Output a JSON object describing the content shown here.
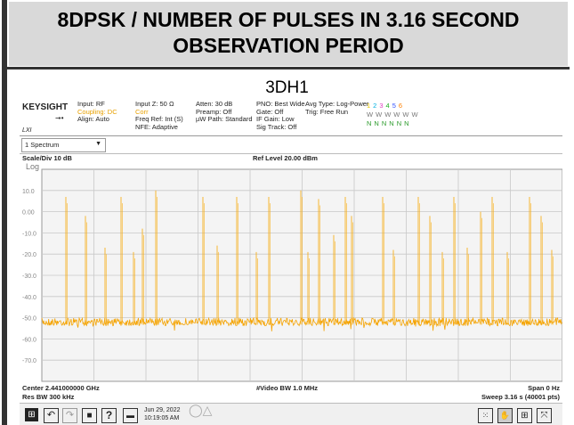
{
  "header": {
    "title": "8DPSK / NUMBER OF PULSES IN 3.16 SECOND OBSERVATION PERIOD",
    "subtitle": "3DH1"
  },
  "screen": {
    "brand": "KEYSIGHT",
    "lxi": "LXI",
    "settings": [
      [
        "Input: RF",
        "Coupling: DC",
        "Align: Auto"
      ],
      [
        "Input Z: 50 Ω",
        "Corr",
        "Freq Ref: Int (S)",
        "NFE: Adaptive"
      ],
      [
        "Atten: 30 dB",
        "Preamp: Off",
        "µW Path: Standard"
      ],
      [
        "PNO: Best Wide",
        "Gate: Off",
        "IF Gain: Low",
        "Sig Track: Off"
      ],
      [
        "Avg Type: Log-Power",
        "Trig: Free Run"
      ]
    ],
    "traces": {
      "numbers": [
        "1",
        "2",
        "3",
        "4",
        "5",
        "6"
      ],
      "types": [
        "W",
        "W",
        "W",
        "W",
        "W",
        "W"
      ],
      "detectors": [
        "N",
        "N",
        "N",
        "N",
        "N",
        "N"
      ]
    },
    "tab": "1 Spectrum",
    "scale": "Scale/Div 10 dB",
    "ref": "Ref Level 20.00 dBm",
    "log": "Log",
    "y_labels": [
      "10.0",
      "0.00",
      "-10.0",
      "-20.0",
      "-30.0",
      "-40.0",
      "-50.0",
      "-60.0",
      "-70.0"
    ],
    "footer": {
      "center": "Center 2.441000000 GHz",
      "vbw": "#Video BW 1.0 MHz",
      "span": "Span 0 Hz",
      "rbw": "Res BW 300 kHz",
      "sweep": "Sweep 3.16 s (40001 pts)"
    },
    "taskbar": {
      "date": "Jun 29, 2022",
      "time": "10:19:05 AM"
    }
  }
}
